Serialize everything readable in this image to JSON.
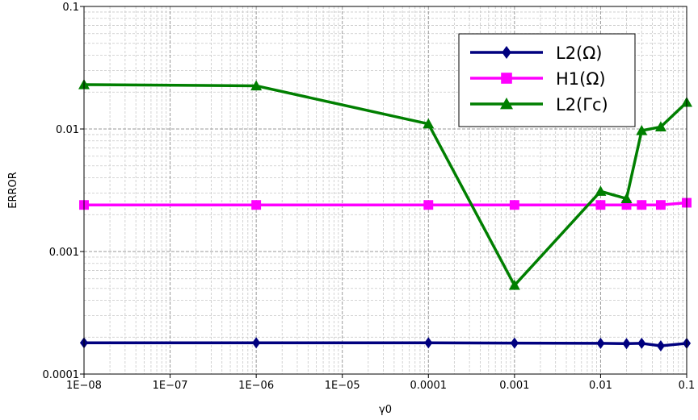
{
  "chart_data": {
    "type": "line",
    "xlabel": "γ0",
    "ylabel": "ERROR",
    "x_scale": "log",
    "y_scale": "log",
    "xlim": [
      1e-08,
      0.1
    ],
    "ylim": [
      0.0001,
      0.1
    ],
    "x_tick_labels": [
      "1E−08",
      "1E−07",
      "1E−06",
      "1E−05",
      "0.0001",
      "0.001",
      "0.01",
      "0.1"
    ],
    "y_tick_labels": [
      "0.0001",
      "0.001",
      "0.01",
      "0.1"
    ],
    "grid": true,
    "legend_position": "top-right",
    "series": [
      {
        "name": "L2(Ω)",
        "color": "#00007f",
        "marker": "diamond",
        "x": [
          1e-08,
          1e-06,
          0.0001,
          0.001,
          0.01,
          0.02,
          0.03,
          0.05,
          0.1
        ],
        "y": [
          0.00018,
          0.00018,
          0.00018,
          0.000179,
          0.000178,
          0.000177,
          0.000178,
          0.00017,
          0.000178
        ]
      },
      {
        "name": "H1(Ω)",
        "color": "#ff00ff",
        "marker": "square",
        "x": [
          1e-08,
          1e-06,
          0.0001,
          0.001,
          0.01,
          0.02,
          0.03,
          0.05,
          0.1
        ],
        "y": [
          0.0024,
          0.0024,
          0.0024,
          0.0024,
          0.0024,
          0.0024,
          0.0024,
          0.0024,
          0.0025
        ]
      },
      {
        "name": "L2(Γc)",
        "color": "#007f00",
        "marker": "triangle",
        "x": [
          1e-08,
          1e-06,
          0.0001,
          0.001,
          0.01,
          0.02,
          0.03,
          0.05,
          0.1
        ],
        "y": [
          0.023,
          0.0225,
          0.011,
          0.00053,
          0.0031,
          0.0027,
          0.0097,
          0.0104,
          0.0165
        ]
      }
    ]
  }
}
